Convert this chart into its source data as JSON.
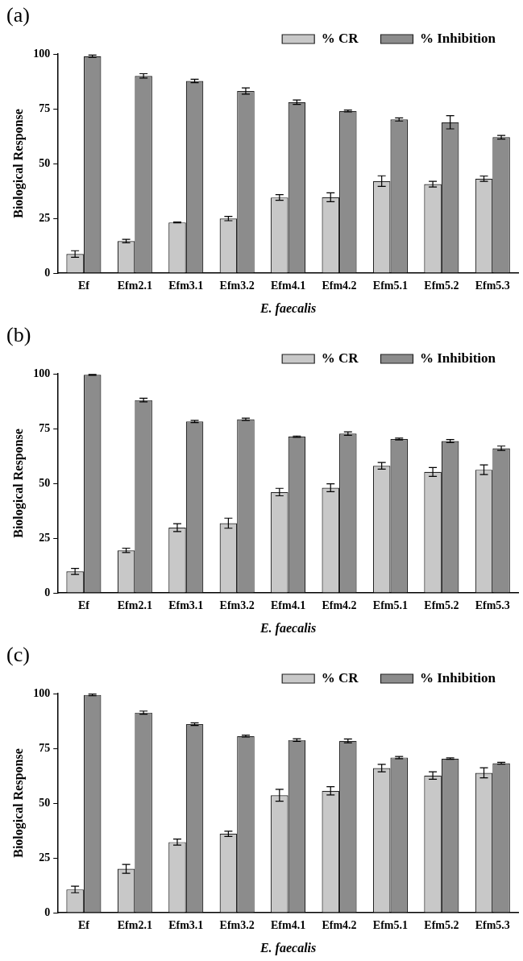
{
  "chart_data": [
    {
      "type": "bar",
      "title": "(a)",
      "xlabel": "E. faecalis",
      "ylabel": "Biological Response",
      "categories": [
        "Ef",
        "Efm2.1",
        "Efm3.1",
        "Efm3.2",
        "Efm4.1",
        "Efm4.2",
        "Efm5.1",
        "Efm5.2",
        "Efm5.3"
      ],
      "ylim": [
        0,
        100
      ],
      "yticks": [
        0,
        25,
        50,
        75,
        100
      ],
      "grid": false,
      "legend": "top right",
      "series": [
        {
          "name": "% CR",
          "color": "#c8c8c8",
          "values": [
            8.7,
            14.6,
            23.1,
            24.9,
            34.5,
            34.6,
            42,
            40.6,
            43.1
          ],
          "errors": [
            1.5,
            0.8,
            0.2,
            1,
            1.3,
            2,
            2.4,
            1.3,
            1.2
          ]
        },
        {
          "name": "% Inhibition",
          "color": "#8c8c8c",
          "values": [
            99,
            90,
            87.7,
            83.1,
            78,
            74,
            70.1,
            68.8,
            62
          ],
          "errors": [
            0.5,
            1,
            0.8,
            1.4,
            1,
            0.4,
            0.7,
            3,
            0.8
          ]
        }
      ]
    },
    {
      "type": "bar",
      "title": "(b)",
      "xlabel": "E. faecalis",
      "ylabel": "Biological Response",
      "categories": [
        "Ef",
        "Efm2.1",
        "Efm3.1",
        "Efm3.2",
        "Efm4.1",
        "Efm4.2",
        "Efm5.1",
        "Efm5.2",
        "Efm5.3"
      ],
      "ylim": [
        0,
        100
      ],
      "yticks": [
        0,
        25,
        50,
        75,
        100
      ],
      "grid": false,
      "legend": "top right",
      "series": [
        {
          "name": "% CR",
          "color": "#c8c8c8",
          "values": [
            9.8,
            19.4,
            29.8,
            31.8,
            46,
            48,
            58,
            55.2,
            56.2
          ],
          "errors": [
            1.4,
            1,
            1.8,
            2.3,
            1.7,
            1.8,
            1.5,
            2,
            2.2
          ]
        },
        {
          "name": "% Inhibition",
          "color": "#8c8c8c",
          "values": [
            99.5,
            88,
            78.2,
            79.2,
            71.3,
            72.7,
            70.2,
            69.3,
            66
          ],
          "errors": [
            0.2,
            0.8,
            0.5,
            0.5,
            0.3,
            0.8,
            0.4,
            0.7,
            1
          ]
        }
      ]
    },
    {
      "type": "bar",
      "title": "(c)",
      "xlabel": "E. faecalis",
      "ylabel": "Biological Response",
      "categories": [
        "Ef",
        "Efm2.1",
        "Efm3.1",
        "Efm3.2",
        "Efm4.1",
        "Efm4.2",
        "Efm5.1",
        "Efm5.2",
        "Efm5.3"
      ],
      "ylim": [
        0,
        100
      ],
      "yticks": [
        0,
        25,
        50,
        75,
        100
      ],
      "grid": false,
      "legend": "top right",
      "series": [
        {
          "name": "% CR",
          "color": "#c8c8c8",
          "values": [
            10.6,
            20,
            32.2,
            36,
            53.6,
            55.6,
            66,
            62.6,
            63.8
          ],
          "errors": [
            1.5,
            2,
            1.4,
            1.2,
            2.7,
            1.9,
            1.7,
            1.7,
            2.3
          ]
        },
        {
          "name": "% Inhibition",
          "color": "#8c8c8c",
          "values": [
            99.4,
            91.3,
            86,
            80.6,
            78.8,
            78.4,
            70.8,
            70.3,
            68.2
          ],
          "errors": [
            0.4,
            0.7,
            0.6,
            0.4,
            0.6,
            0.9,
            0.5,
            0.3,
            0.4
          ]
        }
      ]
    }
  ]
}
